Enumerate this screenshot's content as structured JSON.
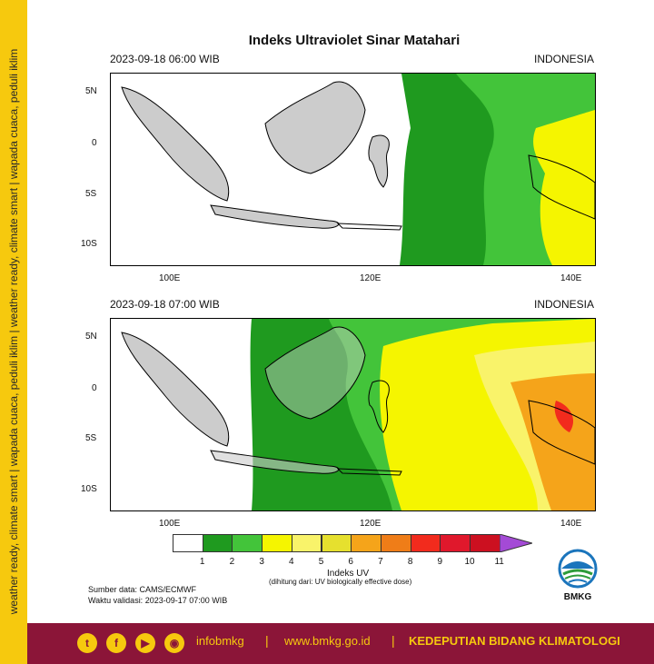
{
  "sidebar": {
    "text": "weather ready, climate smart | wapada cuaca, peduli iklim | weather ready, climate smart | wapada cuaca, peduli iklim"
  },
  "title": "Indeks Ultraviolet Sinar Matahari",
  "maps": [
    {
      "time_label": "2023-09-18  06:00 WIB",
      "region": "INDONESIA"
    },
    {
      "time_label": "2023-09-18  07:00 WIB",
      "region": "INDONESIA"
    }
  ],
  "axes": {
    "lat_labels": [
      "5N",
      "0",
      "5S",
      "10S"
    ],
    "lon_labels": [
      "100E",
      "120E",
      "140E"
    ]
  },
  "legend": {
    "labels": [
      "1",
      "2",
      "3",
      "4",
      "5",
      "6",
      "7",
      "8",
      "9",
      "10",
      "11"
    ],
    "title": "Indeks UV",
    "subtitle": "(dihitung dari: UV biologically effective dose)",
    "colors": [
      "#ffffff",
      "#1f9a1f",
      "#43c43a",
      "#f5f500",
      "#f9f36a",
      "#e6e02e",
      "#f5a41a",
      "#ef7d18",
      "#f22b1d",
      "#e0182c",
      "#cc1020",
      "#a44ad6"
    ]
  },
  "source": {
    "data": "Sumber data: CAMS/ECMWF",
    "validity": "Waktu validasi: 2023-09-17 07:00 WIB"
  },
  "logo": {
    "text": "BMKG"
  },
  "footer": {
    "handle": "infobmkg",
    "separator": "|",
    "website": "www.bmkg.go.id",
    "org": "KEDEPUTIAN BIDANG KLIMATOLOGI"
  },
  "colors": {
    "brand_yellow": "#f6c90e",
    "brand_maroon": "#8b1538"
  }
}
